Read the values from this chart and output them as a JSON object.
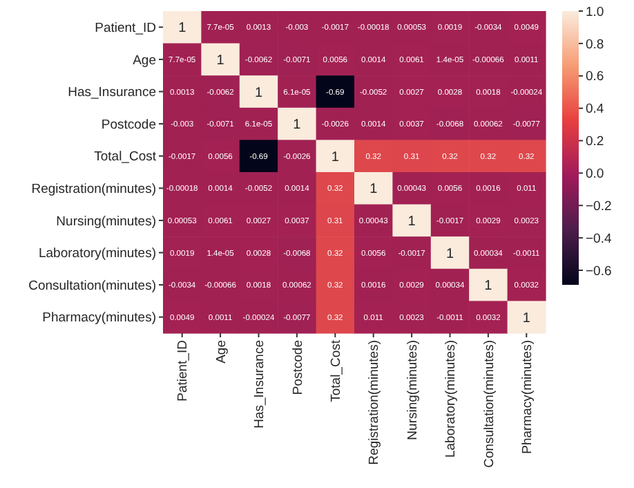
{
  "chart_data": {
    "type": "heatmap",
    "categories": [
      "Patient_ID",
      "Age",
      "Has_Insurance",
      "Postcode",
      "Total_Cost",
      "Registration(minutes)",
      "Nursing(minutes)",
      "Laboratory(minutes)",
      "Consultation(minutes)",
      "Pharmacy(minutes)"
    ],
    "y_categories": [
      "Patient_ID",
      "Age",
      "Has_Insurance",
      "Postcode",
      "Total_Cost",
      "Registration(minutes)",
      "Nursing(minutes)",
      "Laboratory(minutes)",
      "Consultation(minutes)",
      "Pharmacy(minutes)"
    ],
    "cells": [
      [
        1,
        7.7e-05,
        0.0013,
        -0.003,
        -0.0017,
        -0.00018,
        0.00053,
        0.0019,
        -0.0034,
        0.0049
      ],
      [
        7.7e-05,
        1,
        -0.0062,
        -0.0071,
        0.0056,
        0.0014,
        0.0061,
        1.4e-05,
        -0.00066,
        0.0011
      ],
      [
        0.0013,
        -0.0062,
        1,
        6.1e-05,
        -0.69,
        -0.0052,
        0.0027,
        0.0028,
        0.0018,
        -0.00024
      ],
      [
        -0.003,
        -0.0071,
        6.1e-05,
        1,
        -0.0026,
        0.0014,
        0.0037,
        -0.0068,
        0.00062,
        -0.0077
      ],
      [
        -0.0017,
        0.0056,
        -0.69,
        -0.0026,
        1,
        0.32,
        0.31,
        0.32,
        0.32,
        0.32
      ],
      [
        -0.00018,
        0.0014,
        -0.0052,
        0.0014,
        0.32,
        1,
        0.00043,
        0.0056,
        0.0016,
        0.011
      ],
      [
        0.00053,
        0.0061,
        0.0027,
        0.0037,
        0.31,
        0.00043,
        1,
        -0.0017,
        0.0029,
        0.0023
      ],
      [
        0.0019,
        1.4e-05,
        0.0028,
        -0.0068,
        0.32,
        0.0056,
        -0.0017,
        1,
        0.00034,
        -0.0011
      ],
      [
        -0.0034,
        -0.00066,
        0.0018,
        0.00062,
        0.32,
        0.0016,
        0.0029,
        0.00034,
        1,
        0.0032
      ],
      [
        0.0049,
        0.0011,
        -0.00024,
        -0.0077,
        0.32,
        0.011,
        0.0023,
        -0.0011,
        0.0032,
        1
      ]
    ],
    "clim": [
      -0.69,
      1
    ],
    "cticks": [
      {
        "value": -0.6,
        "label": "−0.6"
      },
      {
        "value": -0.4,
        "label": "−0.4"
      },
      {
        "value": -0.2,
        "label": "−0.2"
      },
      {
        "value": 0,
        "label": "0.0"
      },
      {
        "value": 0.2,
        "label": "0.2"
      },
      {
        "value": 0.4,
        "label": "0.4"
      },
      {
        "value": 0.6,
        "label": "0.6"
      },
      {
        "value": 0.8,
        "label": "0.8"
      },
      {
        "value": 1,
        "label": "1.0"
      }
    ],
    "data_labels": true
  }
}
